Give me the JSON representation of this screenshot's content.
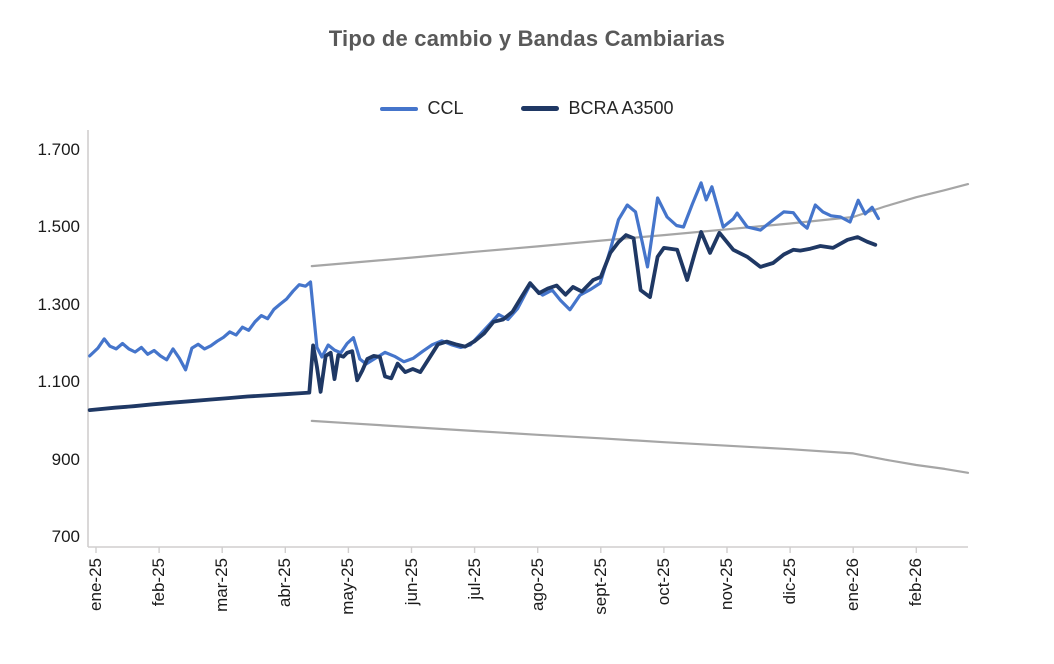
{
  "page": {
    "background": "#FFFFFF"
  },
  "chart_data": {
    "type": "line",
    "title": "Tipo de cambio y Bandas Cambiarias",
    "title_color": "#595959",
    "x_unit": "months_since_ene_2025",
    "y_range": [
      700,
      1700
    ],
    "grid": false,
    "axis_color": "#D0CECE",
    "label_color": "#1A1A1A",
    "y_ticks": [
      {
        "value": 1700,
        "label": "1.700"
      },
      {
        "value": 1500,
        "label": "1.500"
      },
      {
        "value": 1300,
        "label": "1.300"
      },
      {
        "value": 1100,
        "label": "1.100"
      },
      {
        "value": 900,
        "label": "900"
      },
      {
        "value": 700,
        "label": "700"
      }
    ],
    "x_ticks": [
      {
        "m": 0,
        "label": "ene-25"
      },
      {
        "m": 1,
        "label": "feb-25"
      },
      {
        "m": 2,
        "label": "mar-25"
      },
      {
        "m": 3,
        "label": "abr-25"
      },
      {
        "m": 4,
        "label": "may-25"
      },
      {
        "m": 5,
        "label": "jun-25"
      },
      {
        "m": 6,
        "label": "jul-25"
      },
      {
        "m": 7,
        "label": "ago-25"
      },
      {
        "m": 8,
        "label": "sept-25"
      },
      {
        "m": 9,
        "label": "oct-25"
      },
      {
        "m": 10,
        "label": "nov-25"
      },
      {
        "m": 11,
        "label": "dic-25"
      },
      {
        "m": 12,
        "label": "ene-26"
      },
      {
        "m": 13,
        "label": "feb-26"
      }
    ],
    "legend": {
      "position": "top",
      "items": [
        {
          "label": "CCL",
          "color": "#4575CB"
        },
        {
          "label": "BCRA A3500",
          "color": "#1F3864"
        }
      ]
    },
    "series": [
      {
        "name": "banda-inferior",
        "color": "#A6A6A6",
        "width": 2.2,
        "points": [
          [
            3.42,
            1000
          ],
          [
            4,
            994
          ],
          [
            5,
            984
          ],
          [
            6,
            974
          ],
          [
            7,
            964
          ],
          [
            8,
            955
          ],
          [
            9,
            945
          ],
          [
            10,
            936
          ],
          [
            11,
            927
          ],
          [
            12,
            916
          ],
          [
            12.5,
            900
          ],
          [
            13,
            886
          ],
          [
            13.45,
            876
          ],
          [
            13.82,
            866
          ]
        ]
      },
      {
        "name": "banda-superior",
        "color": "#A6A6A6",
        "width": 2.2,
        "points": [
          [
            3.42,
            1400
          ],
          [
            4,
            1408
          ],
          [
            5,
            1422
          ],
          [
            6,
            1437
          ],
          [
            7,
            1451
          ],
          [
            8,
            1466
          ],
          [
            9,
            1480
          ],
          [
            10,
            1495
          ],
          [
            11,
            1510
          ],
          [
            12,
            1527
          ],
          [
            12.5,
            1554
          ],
          [
            13,
            1578
          ],
          [
            13.45,
            1596
          ],
          [
            13.82,
            1612
          ]
        ]
      },
      {
        "name": "CCL",
        "color": "#4575CB",
        "width": 3.2,
        "points": [
          [
            -0.1,
            1168
          ],
          [
            0.03,
            1188
          ],
          [
            0.13,
            1212
          ],
          [
            0.22,
            1193
          ],
          [
            0.32,
            1186
          ],
          [
            0.42,
            1200
          ],
          [
            0.52,
            1186
          ],
          [
            0.62,
            1178
          ],
          [
            0.72,
            1190
          ],
          [
            0.82,
            1172
          ],
          [
            0.92,
            1182
          ],
          [
            1.02,
            1168
          ],
          [
            1.12,
            1158
          ],
          [
            1.22,
            1186
          ],
          [
            1.32,
            1162
          ],
          [
            1.42,
            1132
          ],
          [
            1.52,
            1188
          ],
          [
            1.62,
            1198
          ],
          [
            1.72,
            1186
          ],
          [
            1.82,
            1194
          ],
          [
            1.92,
            1206
          ],
          [
            2.02,
            1216
          ],
          [
            2.12,
            1230
          ],
          [
            2.22,
            1222
          ],
          [
            2.32,
            1242
          ],
          [
            2.42,
            1234
          ],
          [
            2.52,
            1256
          ],
          [
            2.62,
            1272
          ],
          [
            2.72,
            1264
          ],
          [
            2.82,
            1288
          ],
          [
            2.92,
            1302
          ],
          [
            3.02,
            1315
          ],
          [
            3.12,
            1335
          ],
          [
            3.22,
            1352
          ],
          [
            3.32,
            1348
          ],
          [
            3.4,
            1359
          ],
          [
            3.5,
            1190
          ],
          [
            3.58,
            1165
          ],
          [
            3.68,
            1196
          ],
          [
            3.78,
            1183
          ],
          [
            3.88,
            1176
          ],
          [
            3.98,
            1200
          ],
          [
            4.08,
            1215
          ],
          [
            4.18,
            1160
          ],
          [
            4.28,
            1147
          ],
          [
            4.43,
            1162
          ],
          [
            4.58,
            1177
          ],
          [
            4.73,
            1167
          ],
          [
            4.88,
            1153
          ],
          [
            5.03,
            1162
          ],
          [
            5.18,
            1180
          ],
          [
            5.33,
            1197
          ],
          [
            5.48,
            1207
          ],
          [
            5.63,
            1197
          ],
          [
            5.78,
            1190
          ],
          [
            5.93,
            1196
          ],
          [
            6.08,
            1222
          ],
          [
            6.23,
            1248
          ],
          [
            6.38,
            1275
          ],
          [
            6.53,
            1262
          ],
          [
            6.68,
            1290
          ],
          [
            6.88,
            1352
          ],
          [
            7.08,
            1325
          ],
          [
            7.23,
            1338
          ],
          [
            7.36,
            1312
          ],
          [
            7.51,
            1287
          ],
          [
            7.67,
            1325
          ],
          [
            7.84,
            1340
          ],
          [
            7.99,
            1356
          ],
          [
            8.15,
            1442
          ],
          [
            8.28,
            1520
          ],
          [
            8.42,
            1558
          ],
          [
            8.55,
            1540
          ],
          [
            8.66,
            1460
          ],
          [
            8.74,
            1398
          ],
          [
            8.9,
            1576
          ],
          [
            9.05,
            1527
          ],
          [
            9.2,
            1505
          ],
          [
            9.31,
            1501
          ],
          [
            9.45,
            1560
          ],
          [
            9.59,
            1615
          ],
          [
            9.67,
            1571
          ],
          [
            9.76,
            1605
          ],
          [
            9.94,
            1501
          ],
          [
            10.1,
            1522
          ],
          [
            10.16,
            1537
          ],
          [
            10.32,
            1501
          ],
          [
            10.53,
            1493
          ],
          [
            10.73,
            1519
          ],
          [
            10.9,
            1540
          ],
          [
            11.05,
            1538
          ],
          [
            11.18,
            1510
          ],
          [
            11.27,
            1498
          ],
          [
            11.4,
            1558
          ],
          [
            11.52,
            1540
          ],
          [
            11.65,
            1530
          ],
          [
            11.8,
            1527
          ],
          [
            11.95,
            1514
          ],
          [
            12.08,
            1570
          ],
          [
            12.19,
            1535
          ],
          [
            12.3,
            1552
          ],
          [
            12.4,
            1523
          ]
        ]
      },
      {
        "name": "BCRA A3500",
        "color": "#1F3864",
        "width": 3.8,
        "points": [
          [
            -0.1,
            1028
          ],
          [
            0.3,
            1034
          ],
          [
            0.6,
            1038
          ],
          [
            0.9,
            1043
          ],
          [
            1.2,
            1047
          ],
          [
            1.5,
            1051
          ],
          [
            1.8,
            1055
          ],
          [
            2.1,
            1059
          ],
          [
            2.4,
            1063
          ],
          [
            2.7,
            1066
          ],
          [
            3.0,
            1069
          ],
          [
            3.2,
            1071
          ],
          [
            3.38,
            1073
          ],
          [
            3.44,
            1195
          ],
          [
            3.5,
            1140
          ],
          [
            3.56,
            1075
          ],
          [
            3.64,
            1168
          ],
          [
            3.72,
            1176
          ],
          [
            3.78,
            1108
          ],
          [
            3.84,
            1170
          ],
          [
            3.92,
            1166
          ],
          [
            3.98,
            1176
          ],
          [
            4.06,
            1180
          ],
          [
            4.14,
            1105
          ],
          [
            4.22,
            1130
          ],
          [
            4.3,
            1160
          ],
          [
            4.4,
            1168
          ],
          [
            4.5,
            1165
          ],
          [
            4.58,
            1115
          ],
          [
            4.68,
            1110
          ],
          [
            4.78,
            1148
          ],
          [
            4.9,
            1126
          ],
          [
            5.02,
            1134
          ],
          [
            5.14,
            1126
          ],
          [
            5.28,
            1162
          ],
          [
            5.42,
            1198
          ],
          [
            5.56,
            1205
          ],
          [
            5.7,
            1198
          ],
          [
            5.85,
            1192
          ],
          [
            6.0,
            1206
          ],
          [
            6.15,
            1226
          ],
          [
            6.3,
            1256
          ],
          [
            6.45,
            1262
          ],
          [
            6.6,
            1282
          ],
          [
            6.75,
            1322
          ],
          [
            6.88,
            1356
          ],
          [
            7.02,
            1330
          ],
          [
            7.16,
            1342
          ],
          [
            7.3,
            1350
          ],
          [
            7.44,
            1326
          ],
          [
            7.56,
            1346
          ],
          [
            7.7,
            1334
          ],
          [
            7.88,
            1364
          ],
          [
            8.0,
            1372
          ],
          [
            8.15,
            1434
          ],
          [
            8.28,
            1462
          ],
          [
            8.4,
            1480
          ],
          [
            8.52,
            1472
          ],
          [
            8.63,
            1338
          ],
          [
            8.78,
            1320
          ],
          [
            8.9,
            1424
          ],
          [
            9.0,
            1447
          ],
          [
            9.21,
            1442
          ],
          [
            9.37,
            1364
          ],
          [
            9.48,
            1428
          ],
          [
            9.59,
            1488
          ],
          [
            9.73,
            1434
          ],
          [
            9.88,
            1486
          ],
          [
            10.1,
            1442
          ],
          [
            10.32,
            1424
          ],
          [
            10.53,
            1398
          ],
          [
            10.73,
            1408
          ],
          [
            10.9,
            1430
          ],
          [
            11.05,
            1442
          ],
          [
            11.16,
            1440
          ],
          [
            11.32,
            1445
          ],
          [
            11.48,
            1452
          ],
          [
            11.68,
            1447
          ],
          [
            11.91,
            1468
          ],
          [
            12.07,
            1475
          ],
          [
            12.22,
            1463
          ],
          [
            12.35,
            1455
          ]
        ]
      }
    ]
  }
}
